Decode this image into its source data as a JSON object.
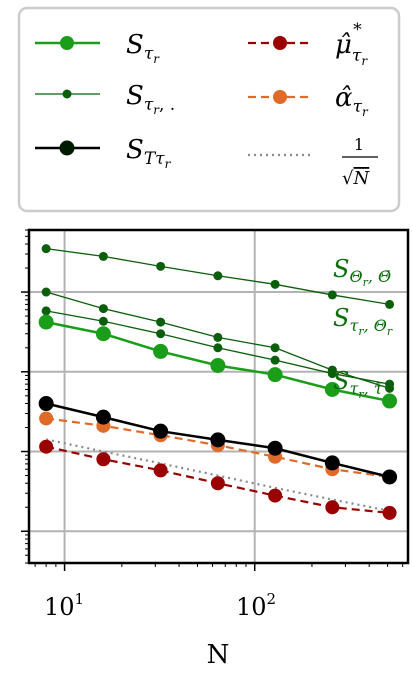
{
  "chart_data": {
    "type": "line",
    "xscale": "log",
    "yscale": "log",
    "xlabel": "N",
    "ylabel": "",
    "title": "",
    "grid": true,
    "legend_placement": "top, above plot, two columns",
    "x_tick_labels": [
      "10^1",
      "10^2"
    ],
    "xlim": [
      6.5,
      640
    ],
    "ylim": [
      0.0004,
      6.0
    ],
    "x": [
      8,
      16,
      32,
      64,
      128,
      256,
      512
    ],
    "series": [
      {
        "name": "S_{τ_r}",
        "style": "solid-large",
        "color": "#1a9e1a",
        "values": [
          0.42,
          0.3,
          0.18,
          0.12,
          0.092,
          0.06,
          0.043
        ]
      },
      {
        "name": "S_{τ_r,Θ_r}",
        "style": "solid-small",
        "color": "#0b5e0b",
        "values": [
          1.0,
          0.62,
          0.42,
          0.27,
          0.2,
          0.105,
          0.062
        ]
      },
      {
        "name": "S_{Θ_r,Θ̄}",
        "style": "solid-small",
        "color": "#0b5e0b",
        "values": [
          3.5,
          2.8,
          2.1,
          1.6,
          1.25,
          0.92,
          0.7
        ]
      },
      {
        "name": "S_{τ_r,τ̄}",
        "style": "solid-small",
        "color": "#0b5e0b",
        "values": [
          0.58,
          0.43,
          0.3,
          0.2,
          0.14,
          0.095,
          0.07
        ]
      },
      {
        "name": "S_{Tτ_r}",
        "style": "solid-large",
        "color": "#000000",
        "values": [
          0.04,
          0.027,
          0.018,
          0.014,
          0.011,
          0.0072,
          0.0048
        ]
      },
      {
        "name": "μ̂*_{τ_r}",
        "style": "dashed",
        "color": "#9b0000",
        "values": [
          0.0115,
          0.008,
          0.0058,
          0.004,
          0.0028,
          0.002,
          0.0017
        ]
      },
      {
        "name": "α̂_{τ_r}",
        "style": "dashed",
        "color": "#e06a28",
        "values": [
          0.026,
          0.021,
          0.016,
          0.012,
          0.0086,
          0.006,
          0.0048
        ]
      },
      {
        "name": "1/√N",
        "style": "dotted",
        "color": "#8a8a8a",
        "values": [
          0.0142,
          0.01,
          0.0071,
          0.005,
          0.0035,
          0.0025,
          0.0018
        ]
      }
    ],
    "legend": [
      "S_{τ_r}",
      "S_{τ_r, .}",
      "S_{Tτ_r}",
      "μ̂*_{τ_r}",
      "α̂_{τ_r}",
      "1/√N"
    ],
    "annotations": [
      "S_{Θ_r,Θ̄}",
      "S_{τ_r,Θ_r}",
      "S_{τ_r,τ̄}"
    ]
  }
}
